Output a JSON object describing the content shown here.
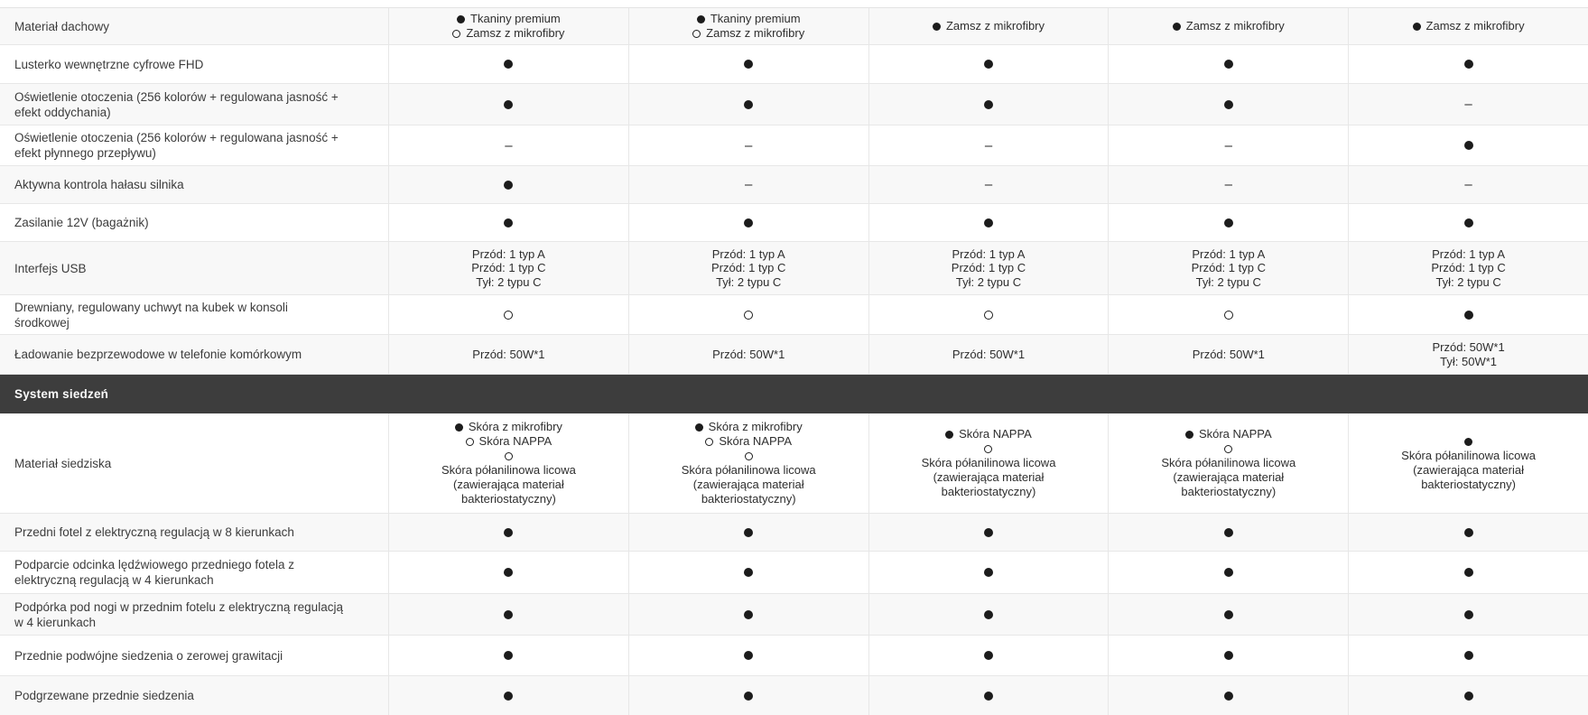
{
  "table": {
    "colors": {
      "section_bg": "#3d3d3d",
      "section_text": "#fafafa",
      "zebra_row_bg": "#f8f8f8",
      "border": "#e7e7e7",
      "text": "#383838",
      "marker": "#1c1c1c"
    },
    "icons": {
      "available": "filled-dot",
      "optional": "open-circle",
      "not_available": "dash"
    },
    "glyphs": {
      "dash": "–"
    },
    "rows": [
      {
        "type": "feature",
        "label": "Materiał dachowy",
        "cells": [
          {
            "kind": "options",
            "options": [
              {
                "marker": "filled",
                "text": "Tkaniny premium"
              },
              {
                "marker": "open",
                "text": "Zamsz z mikrofibry"
              }
            ]
          },
          {
            "kind": "options",
            "options": [
              {
                "marker": "filled",
                "text": "Tkaniny premium"
              },
              {
                "marker": "open",
                "text": "Zamsz z mikrofibry"
              }
            ]
          },
          {
            "kind": "options",
            "options": [
              {
                "marker": "filled",
                "text": "Zamsz z mikrofibry"
              }
            ]
          },
          {
            "kind": "options",
            "options": [
              {
                "marker": "filled",
                "text": "Zamsz z mikrofibry"
              }
            ]
          },
          {
            "kind": "options",
            "options": [
              {
                "marker": "filled",
                "text": "Zamsz z mikrofibry"
              }
            ]
          }
        ]
      },
      {
        "type": "feature",
        "label": "Lusterko wewnętrzne cyfrowe FHD",
        "cells": [
          {
            "kind": "dot"
          },
          {
            "kind": "dot"
          },
          {
            "kind": "dot"
          },
          {
            "kind": "dot"
          },
          {
            "kind": "dot"
          }
        ]
      },
      {
        "type": "feature",
        "label": "Oświetlenie otoczenia (256 kolorów + regulowana jasność + efekt oddychania)",
        "cells": [
          {
            "kind": "dot"
          },
          {
            "kind": "dot"
          },
          {
            "kind": "dot"
          },
          {
            "kind": "dot"
          },
          {
            "kind": "dash"
          }
        ]
      },
      {
        "type": "feature",
        "label": "Oświetlenie otoczenia (256 kolorów + regulowana jasność + efekt płynnego przepływu)",
        "cells": [
          {
            "kind": "dash"
          },
          {
            "kind": "dash"
          },
          {
            "kind": "dash"
          },
          {
            "kind": "dash"
          },
          {
            "kind": "dot"
          }
        ]
      },
      {
        "type": "feature",
        "label": "Aktywna kontrola hałasu silnika",
        "cells": [
          {
            "kind": "dot"
          },
          {
            "kind": "dash"
          },
          {
            "kind": "dash"
          },
          {
            "kind": "dash"
          },
          {
            "kind": "dash"
          }
        ]
      },
      {
        "type": "feature",
        "label": "Zasilanie 12V (bagażnik)",
        "cells": [
          {
            "kind": "dot"
          },
          {
            "kind": "dot"
          },
          {
            "kind": "dot"
          },
          {
            "kind": "dot"
          },
          {
            "kind": "dot"
          }
        ]
      },
      {
        "type": "feature",
        "label": "Interfejs USB",
        "cells": [
          {
            "kind": "text",
            "lines": [
              "Przód: 1 typ A",
              "Przód: 1 typ C",
              "Tył: 2 typu C"
            ]
          },
          {
            "kind": "text",
            "lines": [
              "Przód: 1 typ A",
              "Przód: 1 typ C",
              "Tył: 2 typu C"
            ]
          },
          {
            "kind": "text",
            "lines": [
              "Przód: 1 typ A",
              "Przód: 1 typ C",
              "Tył: 2 typu C"
            ]
          },
          {
            "kind": "text",
            "lines": [
              "Przód: 1 typ A",
              "Przód: 1 typ C",
              "Tył: 2 typu C"
            ]
          },
          {
            "kind": "text",
            "lines": [
              "Przód: 1 typ A",
              "Przód: 1 typ C",
              "Tył: 2 typu C"
            ]
          }
        ]
      },
      {
        "type": "feature",
        "label": "Drewniany, regulowany uchwyt na kubek w konsoli środkowej",
        "cells": [
          {
            "kind": "circle"
          },
          {
            "kind": "circle"
          },
          {
            "kind": "circle"
          },
          {
            "kind": "circle"
          },
          {
            "kind": "dot"
          }
        ]
      },
      {
        "type": "feature",
        "label": "Ładowanie bezprzewodowe w telefonie komórkowym",
        "cells": [
          {
            "kind": "text",
            "lines": [
              "Przód: 50W*1"
            ]
          },
          {
            "kind": "text",
            "lines": [
              "Przód: 50W*1"
            ]
          },
          {
            "kind": "text",
            "lines": [
              "Przód: 50W*1"
            ]
          },
          {
            "kind": "text",
            "lines": [
              "Przód: 50W*1"
            ]
          },
          {
            "kind": "text",
            "lines": [
              "Przód: 50W*1",
              "Tył: 50W*1"
            ]
          }
        ]
      },
      {
        "type": "section",
        "label": "System siedzeń"
      },
      {
        "type": "feature",
        "label": "Materiał siedziska",
        "cells": [
          {
            "kind": "options",
            "options": [
              {
                "marker": "filled",
                "text": "Skóra z mikrofibry"
              },
              {
                "marker": "open",
                "text": "Skóra NAPPA"
              },
              {
                "marker": "open",
                "text": ""
              },
              {
                "marker": null,
                "text": "Skóra półanilinowa licowa"
              },
              {
                "marker": null,
                "text": "(zawierająca materiał"
              },
              {
                "marker": null,
                "text": "bakteriostatyczny)"
              }
            ]
          },
          {
            "kind": "options",
            "options": [
              {
                "marker": "filled",
                "text": "Skóra z mikrofibry"
              },
              {
                "marker": "open",
                "text": "Skóra NAPPA"
              },
              {
                "marker": "open",
                "text": ""
              },
              {
                "marker": null,
                "text": "Skóra półanilinowa licowa"
              },
              {
                "marker": null,
                "text": "(zawierająca materiał"
              },
              {
                "marker": null,
                "text": "bakteriostatyczny)"
              }
            ]
          },
          {
            "kind": "options",
            "options": [
              {
                "marker": "filled",
                "text": "Skóra NAPPA"
              },
              {
                "marker": "open",
                "text": ""
              },
              {
                "marker": null,
                "text": "Skóra półanilinowa licowa"
              },
              {
                "marker": null,
                "text": "(zawierająca materiał"
              },
              {
                "marker": null,
                "text": "bakteriostatyczny)"
              }
            ]
          },
          {
            "kind": "options",
            "options": [
              {
                "marker": "filled",
                "text": "Skóra NAPPA"
              },
              {
                "marker": "open",
                "text": ""
              },
              {
                "marker": null,
                "text": "Skóra półanilinowa licowa"
              },
              {
                "marker": null,
                "text": "(zawierająca materiał"
              },
              {
                "marker": null,
                "text": "bakteriostatyczny)"
              }
            ]
          },
          {
            "kind": "options",
            "options": [
              {
                "marker": "filled",
                "text": ""
              },
              {
                "marker": null,
                "text": "Skóra półanilinowa licowa"
              },
              {
                "marker": null,
                "text": "(zawierająca materiał"
              },
              {
                "marker": null,
                "text": "bakteriostatyczny)"
              }
            ]
          }
        ]
      },
      {
        "type": "feature",
        "label": "Przedni fotel z elektryczną regulacją w 8 kierunkach",
        "cells": [
          {
            "kind": "dot"
          },
          {
            "kind": "dot"
          },
          {
            "kind": "dot"
          },
          {
            "kind": "dot"
          },
          {
            "kind": "dot"
          }
        ]
      },
      {
        "type": "feature",
        "label": "Podparcie odcinka lędźwiowego przedniego fotela z elektryczną regulacją w 4 kierunkach",
        "cells": [
          {
            "kind": "dot"
          },
          {
            "kind": "dot"
          },
          {
            "kind": "dot"
          },
          {
            "kind": "dot"
          },
          {
            "kind": "dot"
          }
        ]
      },
      {
        "type": "feature",
        "label": "Podpórka pod nogi w przednim fotelu z elektryczną regulacją w 4 kierunkach",
        "cells": [
          {
            "kind": "dot"
          },
          {
            "kind": "dot"
          },
          {
            "kind": "dot"
          },
          {
            "kind": "dot"
          },
          {
            "kind": "dot"
          }
        ]
      },
      {
        "type": "feature",
        "label": "Przednie podwójne siedzenia o zerowej grawitacji",
        "cells": [
          {
            "kind": "dot"
          },
          {
            "kind": "dot"
          },
          {
            "kind": "dot"
          },
          {
            "kind": "dot"
          },
          {
            "kind": "dot"
          }
        ]
      },
      {
        "type": "feature",
        "label": "Podgrzewane przednie siedzenia",
        "cells": [
          {
            "kind": "dot"
          },
          {
            "kind": "dot"
          },
          {
            "kind": "dot"
          },
          {
            "kind": "dot"
          },
          {
            "kind": "dot"
          }
        ]
      }
    ]
  }
}
